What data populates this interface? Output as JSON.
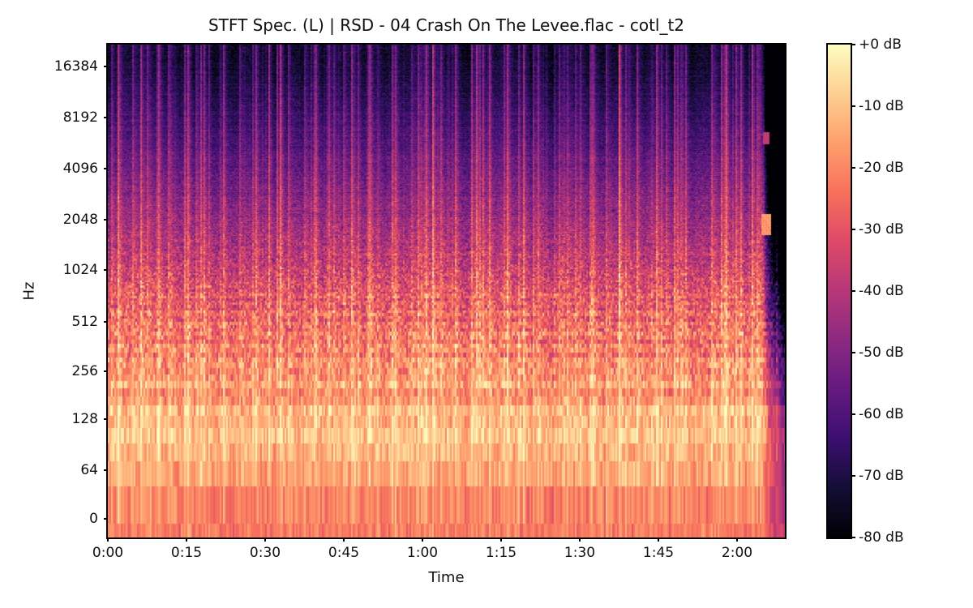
{
  "figure": {
    "title": "STFT Spec. (L) | RSD - 04 Crash On The Levee.flac - cotl_t2"
  },
  "chart_data": {
    "type": "heatmap",
    "subtype": "stft-log-frequency-spectrogram",
    "title": "STFT Spec. (L) | RSD - 04 Crash On The Levee.flac - cotl_t2",
    "xlabel": "Time",
    "ylabel": "Hz",
    "x_ticks": [
      "0:00",
      "0:15",
      "0:30",
      "0:45",
      "1:00",
      "1:15",
      "1:30",
      "1:45",
      "2:00"
    ],
    "x_tick_seconds": [
      0,
      15,
      30,
      45,
      60,
      75,
      90,
      105,
      120
    ],
    "x_range_seconds": [
      0,
      129
    ],
    "audio_end_fraction": 0.966,
    "y_ticks": [
      "16384",
      "8192",
      "4096",
      "2048",
      "1024",
      "512",
      "256",
      "128",
      "64",
      "0"
    ],
    "y_scale": "log2",
    "y_range_hz": [
      0,
      22050
    ],
    "grid": false,
    "colorbar": {
      "ticks": [
        "+0 dB",
        "-10 dB",
        "-20 dB",
        "-30 dB",
        "-40 dB",
        "-50 dB",
        "-60 dB",
        "-70 dB",
        "-80 dB"
      ],
      "vmax_db": 0,
      "vmin_db": -80,
      "position": "right"
    },
    "colormap": {
      "name": "magma",
      "stops": [
        {
          "pos": 0.0,
          "color": "#000004"
        },
        {
          "pos": 0.1,
          "color": "#140e36"
        },
        {
          "pos": 0.2,
          "color": "#3b0f70"
        },
        {
          "pos": 0.3,
          "color": "#641a80"
        },
        {
          "pos": 0.4,
          "color": "#8c2981"
        },
        {
          "pos": 0.5,
          "color": "#b73779"
        },
        {
          "pos": 0.6,
          "color": "#de4968"
        },
        {
          "pos": 0.7,
          "color": "#f7705c"
        },
        {
          "pos": 0.8,
          "color": "#fe9f6d"
        },
        {
          "pos": 0.9,
          "color": "#fecf92"
        },
        {
          "pos": 1.0,
          "color": "#fcfdbf"
        }
      ]
    },
    "band_profile_db": [
      [
        0.0,
        -76
      ],
      [
        0.05,
        -74
      ],
      [
        0.12,
        -69
      ],
      [
        0.2,
        -62
      ],
      [
        0.28,
        -55
      ],
      [
        0.36,
        -48
      ],
      [
        0.44,
        -40
      ],
      [
        0.5,
        -34
      ],
      [
        0.56,
        -28
      ],
      [
        0.62,
        -25
      ],
      [
        0.68,
        -20
      ],
      [
        0.74,
        -16
      ],
      [
        0.8,
        -13.5
      ],
      [
        0.855,
        -14
      ],
      [
        0.9,
        -20
      ],
      [
        0.945,
        -23
      ],
      [
        1.0,
        -26
      ]
    ],
    "appearance_notes": "Bright orange/peach energy below ~256 Hz with fine vertical striping; mixed magenta/orange 256-1024 Hz; purple transient streaks reaching to 16 kHz on beats; audio ends ~2:05 with sharp high-frequency cutoff and low-frequency fade; small bright blip near 1 kHz at the very end."
  }
}
